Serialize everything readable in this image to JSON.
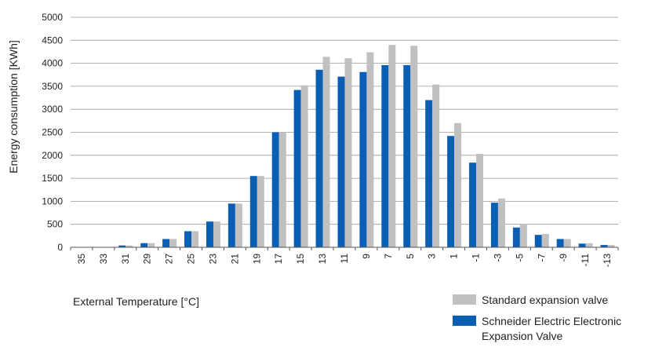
{
  "chart_data": {
    "type": "bar",
    "xlabel": "External Temperature [°C]",
    "ylabel": "Energy consumption [KWh]",
    "ylim": [
      0,
      5000
    ],
    "ytick_step": 500,
    "grid": true,
    "legend_position": "bottom-right",
    "categories": [
      "35",
      "33",
      "31",
      "29",
      "27",
      "25",
      "23",
      "21",
      "19",
      "17",
      "15",
      "13",
      "11",
      "9",
      "7",
      "5",
      "3",
      "1",
      "-1",
      "-3",
      "-5",
      "-7",
      "-9",
      "-11",
      "-13"
    ],
    "series": [
      {
        "name": "Schneider Electric Electronic Expansion Valve",
        "legend_lines": [
          "Schneider Electric Electronic",
          "Expansion Valve"
        ],
        "color": "#0a5fb4",
        "values": [
          0,
          0,
          40,
          90,
          180,
          350,
          560,
          950,
          1550,
          2500,
          3420,
          3860,
          3710,
          3810,
          3960,
          3960,
          3200,
          2420,
          1840,
          970,
          430,
          270,
          180,
          80,
          50
        ]
      },
      {
        "name": "Standard expansion valve",
        "legend_lines": [
          "Standard expansion valve"
        ],
        "color": "#c0c0c0",
        "values": [
          0,
          0,
          40,
          90,
          180,
          350,
          560,
          950,
          1550,
          2500,
          3520,
          4140,
          4110,
          4240,
          4400,
          4380,
          3540,
          2700,
          2030,
          1060,
          490,
          290,
          180,
          90,
          50
        ]
      }
    ]
  }
}
